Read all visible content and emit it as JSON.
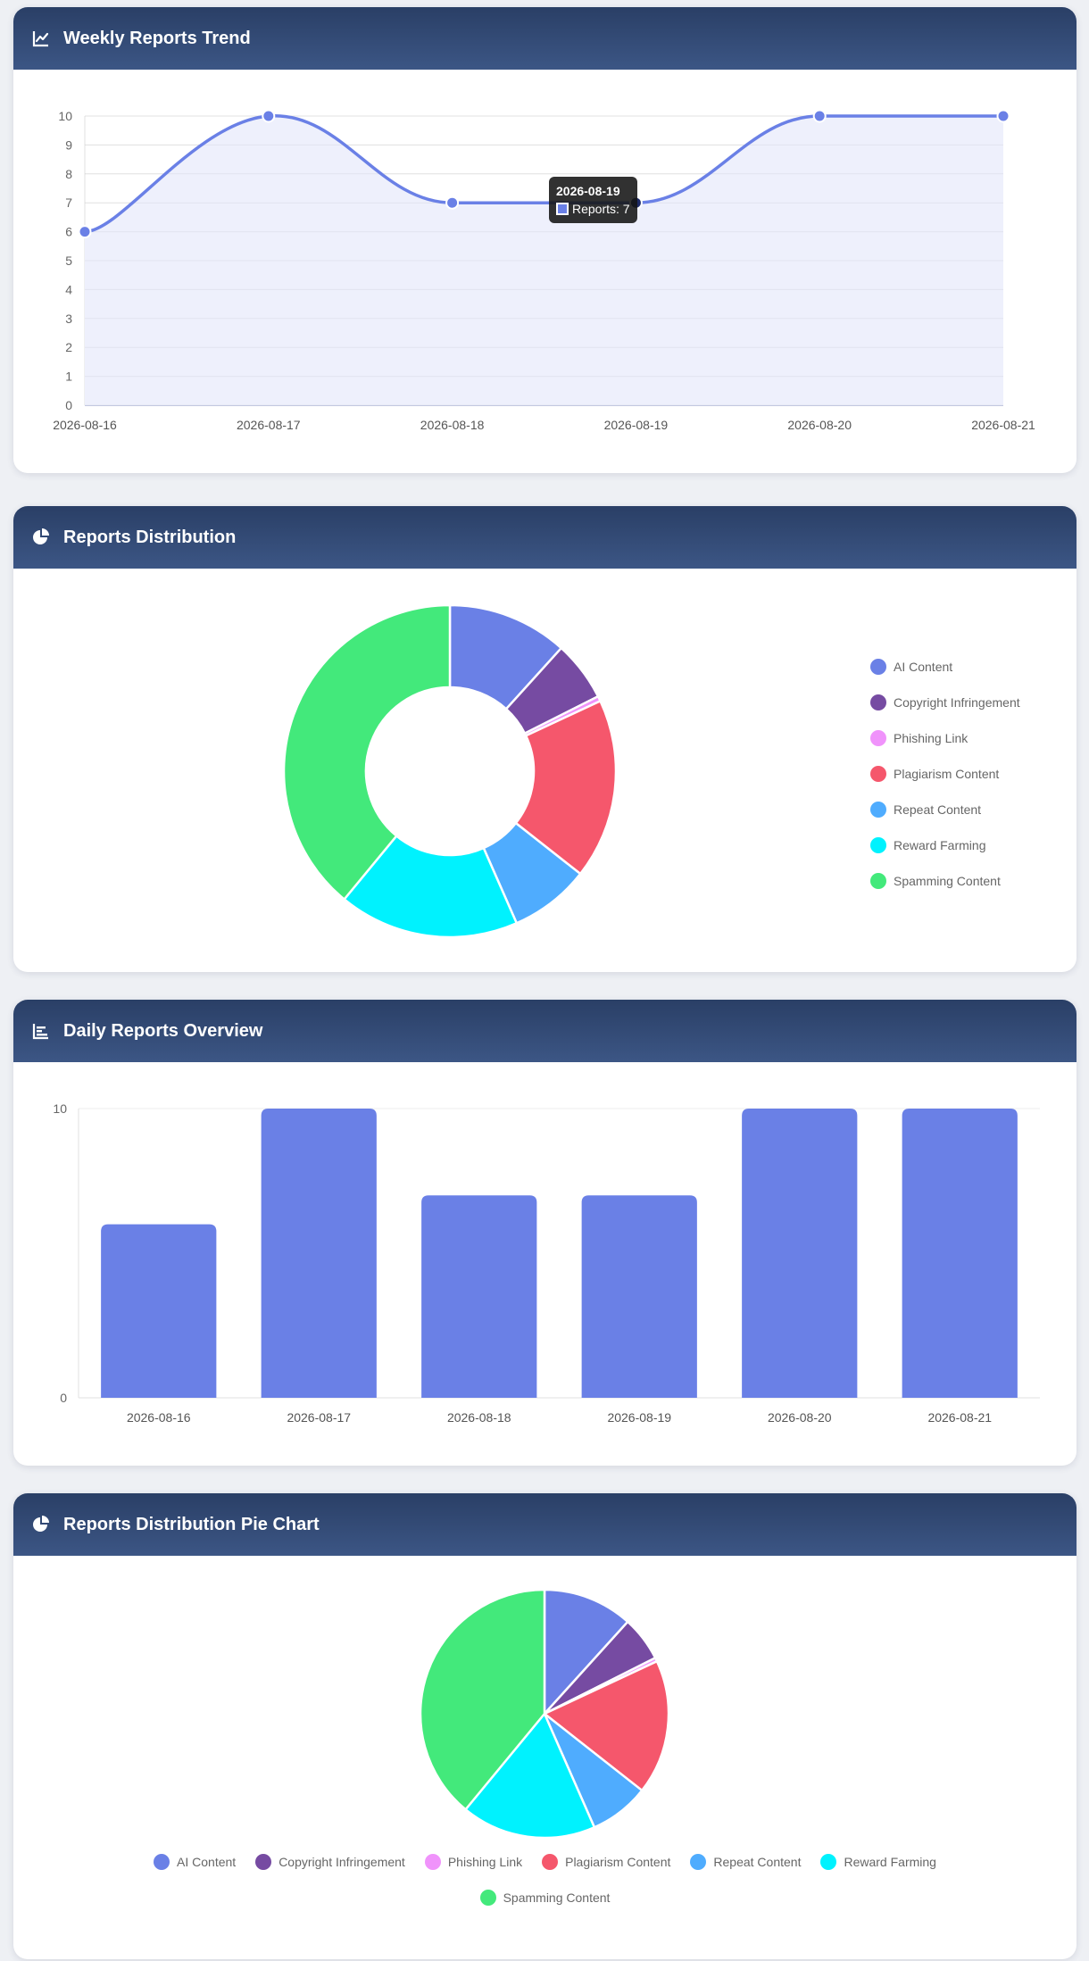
{
  "cards": {
    "trend": {
      "title": "Weekly Reports Trend",
      "icon": "line-chart-icon"
    },
    "distribution": {
      "title": "Reports Distribution",
      "icon": "pie-chart-icon"
    },
    "overview": {
      "title": "Daily Reports Overview",
      "icon": "bar-chart-icon"
    },
    "pie": {
      "title": "Reports Distribution Pie Chart",
      "icon": "pie-chart-icon"
    }
  },
  "tooltip": {
    "title": "2026-08-19",
    "label": "Reports: 7"
  },
  "colors": {
    "primary": "#6a80e6",
    "header": "#2f4670",
    "fill": "#eef0fc"
  },
  "chart_data": [
    {
      "type": "line",
      "title": "Weekly Reports Trend",
      "x": [
        "2026-08-16",
        "2026-08-17",
        "2026-08-18",
        "2026-08-19",
        "2026-08-20",
        "2026-08-21"
      ],
      "series": [
        {
          "name": "Reports",
          "values": [
            6,
            10,
            7,
            7,
            10,
            10
          ]
        }
      ],
      "ylim": [
        0,
        10
      ],
      "yticks": [
        0,
        1,
        2,
        3,
        4,
        5,
        6,
        7,
        8,
        9,
        10
      ],
      "grid": true,
      "fill": true
    },
    {
      "type": "pie",
      "variant": "doughnut",
      "title": "Reports Distribution",
      "labels": [
        "AI Content",
        "Copyright Infringement",
        "Phishing Link",
        "Plagiarism Content",
        "Repeat Content",
        "Reward Farming",
        "Spamming Content"
      ],
      "values": [
        6,
        3,
        0.25,
        9,
        4,
        9,
        20
      ],
      "colors": [
        "#6a80e6",
        "#764ba2",
        "#f093fb",
        "#f5576c",
        "#4facfe",
        "#00f2fe",
        "#43e97b"
      ],
      "legend": "right"
    },
    {
      "type": "bar",
      "title": "Daily Reports Overview",
      "categories": [
        "2026-08-16",
        "2026-08-17",
        "2026-08-18",
        "2026-08-19",
        "2026-08-20",
        "2026-08-21"
      ],
      "values": [
        6,
        10,
        7,
        7,
        10,
        10
      ],
      "ylim": [
        0,
        10
      ],
      "yticks": [
        0,
        10
      ]
    },
    {
      "type": "pie",
      "title": "Reports Distribution Pie Chart",
      "labels": [
        "AI Content",
        "Copyright Infringement",
        "Phishing Link",
        "Plagiarism Content",
        "Repeat Content",
        "Reward Farming",
        "Spamming Content"
      ],
      "values": [
        6,
        3,
        0.25,
        9,
        4,
        9,
        20
      ],
      "colors": [
        "#6a80e6",
        "#764ba2",
        "#f093fb",
        "#f5576c",
        "#4facfe",
        "#00f2fe",
        "#43e97b"
      ],
      "legend": "bottom"
    }
  ]
}
